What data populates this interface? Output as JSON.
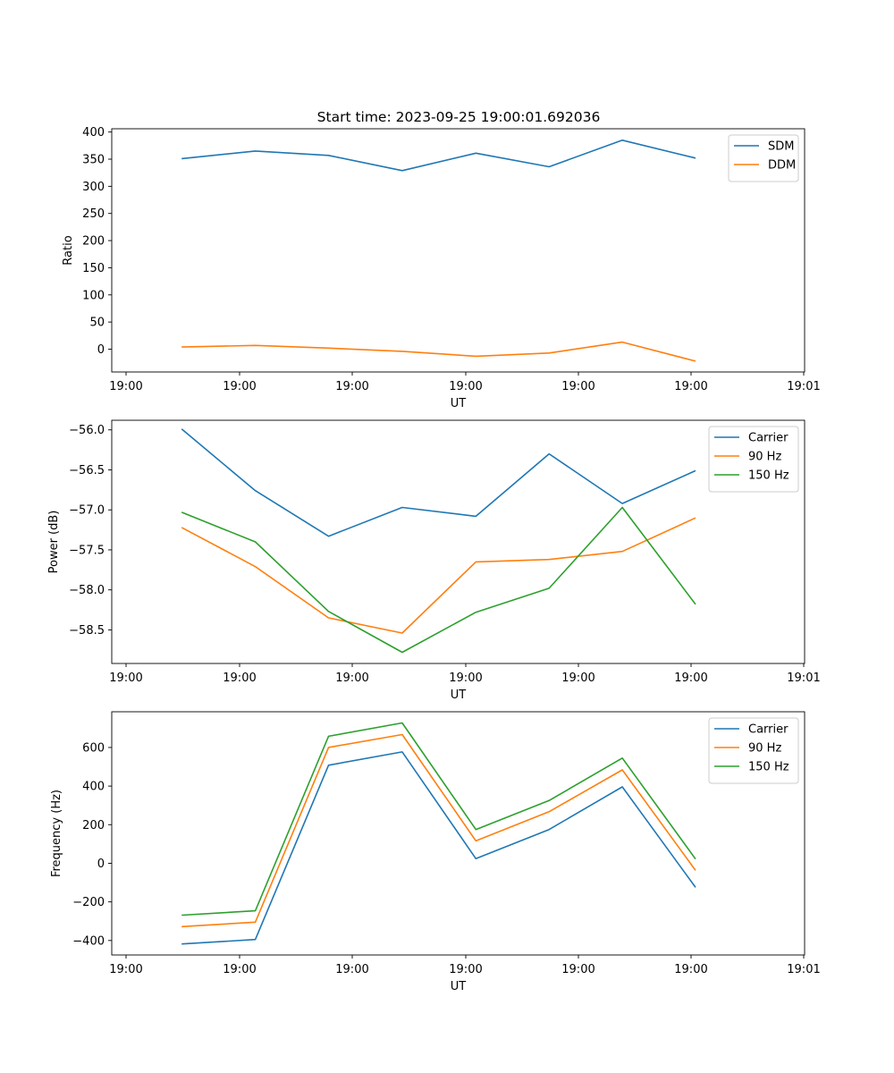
{
  "title": "Start time: 2023-09-25 19:00:01.692036",
  "colors": {
    "c0": "#1f77b4",
    "c1": "#ff7f0e",
    "c2": "#2ca02c"
  },
  "chart_data": [
    {
      "type": "line",
      "xlabel": "UT",
      "ylabel": "Ratio",
      "xlim": [
        0,
        6
      ],
      "xticks": [
        0,
        1,
        2,
        3,
        4,
        5,
        6
      ],
      "xtick_labels": [
        "19:00",
        "19:00",
        "19:00",
        "19:00",
        "19:00",
        "19:00",
        "19:01"
      ],
      "ylim": [
        -42,
        406
      ],
      "yticks": [
        0,
        50,
        100,
        150,
        200,
        250,
        300,
        350,
        400
      ],
      "ytick_labels": [
        "0",
        "50",
        "100",
        "150",
        "200",
        "250",
        "300",
        "350",
        "400"
      ],
      "x": [
        0.49,
        1.14,
        1.79,
        2.44,
        3.09,
        3.74,
        4.39,
        5.04
      ],
      "legend": "upper right",
      "series": [
        {
          "name": "SDM",
          "color": "#1f77b4",
          "values": [
            351,
            365,
            357,
            329,
            361,
            336,
            385,
            352
          ]
        },
        {
          "name": "DDM",
          "color": "#ff7f0e",
          "values": [
            4,
            7,
            2,
            -4,
            -13,
            -7,
            13,
            -22
          ]
        }
      ]
    },
    {
      "type": "line",
      "xlabel": "UT",
      "ylabel": "Power (dB)",
      "xlim": [
        0,
        6
      ],
      "xticks": [
        0,
        1,
        2,
        3,
        4,
        5,
        6
      ],
      "xtick_labels": [
        "19:00",
        "19:00",
        "19:00",
        "19:00",
        "19:00",
        "19:00",
        "19:01"
      ],
      "ylim": [
        -58.92,
        -55.88
      ],
      "yticks": [
        -58.5,
        -58.0,
        -57.5,
        -57.0,
        -56.5,
        -56.0
      ],
      "ytick_labels": [
        "−58.5",
        "−58.0",
        "−57.5",
        "−57.0",
        "−56.5",
        "−56.0"
      ],
      "x": [
        0.49,
        1.14,
        1.79,
        2.44,
        3.09,
        3.74,
        4.39,
        5.04
      ],
      "legend": "upper right",
      "series": [
        {
          "name": "Carrier",
          "color": "#1f77b4",
          "values": [
            -55.99,
            -56.76,
            -57.33,
            -56.97,
            -57.08,
            -56.3,
            -56.92,
            -56.51
          ]
        },
        {
          "name": "90 Hz",
          "color": "#ff7f0e",
          "values": [
            -57.22,
            -57.71,
            -58.35,
            -58.54,
            -57.65,
            -57.62,
            -57.52,
            -57.1
          ]
        },
        {
          "name": "150 Hz",
          "color": "#2ca02c",
          "values": [
            -57.03,
            -57.4,
            -58.27,
            -58.78,
            -58.28,
            -57.98,
            -56.97,
            -58.18
          ]
        }
      ]
    },
    {
      "type": "line",
      "xlabel": "UT",
      "ylabel": "Frequency (Hz)",
      "xlim": [
        0,
        6
      ],
      "xticks": [
        0,
        1,
        2,
        3,
        4,
        5,
        6
      ],
      "xtick_labels": [
        "19:00",
        "19:00",
        "19:00",
        "19:00",
        "19:00",
        "19:00",
        "19:01"
      ],
      "ylim": [
        -475,
        785
      ],
      "yticks": [
        -400,
        -200,
        0,
        200,
        400,
        600
      ],
      "ytick_labels": [
        "−400",
        "−200",
        "0",
        "200",
        "400",
        "600"
      ],
      "x": [
        0.49,
        1.14,
        1.79,
        2.44,
        3.09,
        3.74,
        4.39,
        5.04
      ],
      "legend": "upper right",
      "series": [
        {
          "name": "Carrier",
          "color": "#1f77b4",
          "values": [
            -418,
            -395,
            508,
            577,
            24,
            175,
            396,
            -125
          ]
        },
        {
          "name": "90 Hz",
          "color": "#ff7f0e",
          "values": [
            -328,
            -305,
            600,
            667,
            116,
            267,
            484,
            -37
          ]
        },
        {
          "name": "150 Hz",
          "color": "#2ca02c",
          "values": [
            -269,
            -246,
            658,
            727,
            175,
            325,
            545,
            22
          ]
        }
      ]
    }
  ]
}
